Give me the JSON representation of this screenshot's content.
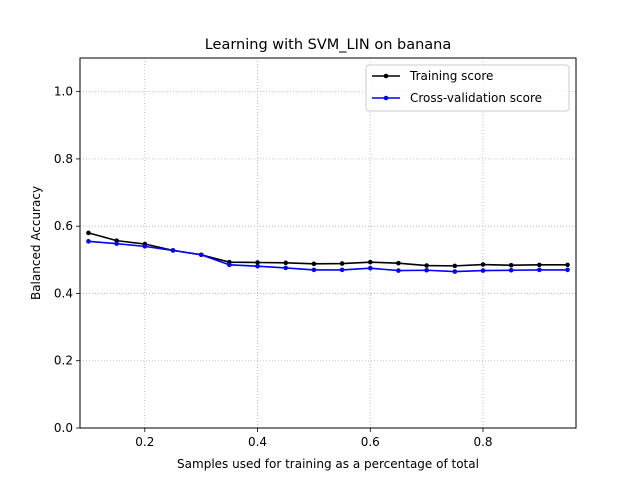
{
  "chart_data": {
    "type": "line",
    "title": "Learning with SVM_LIN on banana",
    "xlabel": "Samples used for training as a percentage of total",
    "ylabel": "Balanced Accuracy",
    "xlim": [
      0.085,
      0.965
    ],
    "ylim": [
      0.0,
      1.1
    ],
    "xticks": [
      0.2,
      0.4,
      0.6,
      0.8
    ],
    "xtick_labels": [
      "0.2",
      "0.4",
      "0.6",
      "0.8"
    ],
    "yticks": [
      0.0,
      0.2,
      0.4,
      0.6,
      0.8,
      1.0
    ],
    "ytick_labels": [
      "0.0",
      "0.2",
      "0.4",
      "0.6",
      "0.8",
      "1.0"
    ],
    "grid": true,
    "legend_position": "top-right",
    "x": [
      0.1,
      0.15,
      0.2,
      0.25,
      0.3,
      0.35,
      0.4,
      0.45,
      0.5,
      0.55,
      0.6,
      0.65,
      0.7,
      0.75,
      0.8,
      0.85,
      0.9,
      0.95
    ],
    "series": [
      {
        "name": "Training score",
        "color": "#000000",
        "values": [
          0.58,
          0.557,
          0.547,
          0.528,
          0.515,
          0.493,
          0.492,
          0.491,
          0.488,
          0.489,
          0.493,
          0.49,
          0.483,
          0.482,
          0.486,
          0.484,
          0.485,
          0.485
        ]
      },
      {
        "name": "Cross-validation score",
        "color": "#0000ff",
        "values": [
          0.555,
          0.548,
          0.54,
          0.528,
          0.515,
          0.485,
          0.481,
          0.476,
          0.47,
          0.47,
          0.475,
          0.468,
          0.469,
          0.465,
          0.468,
          0.469,
          0.47,
          0.47
        ]
      }
    ]
  }
}
